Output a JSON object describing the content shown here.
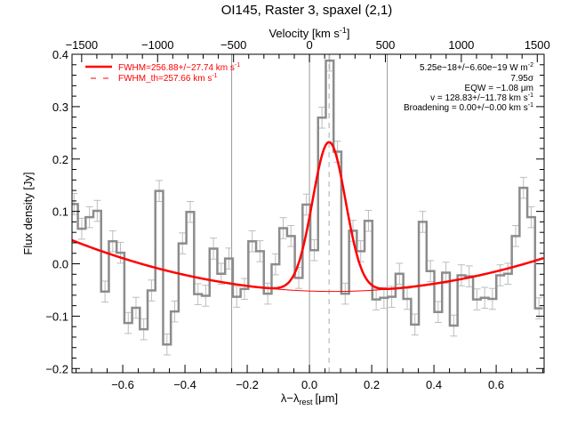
{
  "chart_data": {
    "type": "line",
    "title": "OI145, Raster 3, spaxel (2,1)",
    "xlabel": "λ−λ",
    "xlabel_sub": "rest",
    "xlabel_unit": "[μm]",
    "ylabel": "Flux density [Jy]",
    "top_xlabel": "Velocity [km s",
    "top_xlabel_sup": "-1",
    "top_xlabel_end": "]",
    "xlim": [
      -0.763,
      0.754
    ],
    "ylim": [
      -0.208,
      0.4
    ],
    "grid": false,
    "x_ticks": [
      -0.6,
      -0.4,
      -0.2,
      0.0,
      0.2,
      0.4,
      0.6
    ],
    "x_tick_labels": [
      "−0.6",
      "−0.4",
      "−0.2",
      "0.0",
      "0.2",
      "0.4",
      "0.6"
    ],
    "y_ticks": [
      -0.2,
      -0.1,
      0.0,
      0.1,
      0.2,
      0.3,
      0.4
    ],
    "y_tick_labels": [
      "−0.2",
      "−0.1",
      "0.0",
      "0.1",
      "0.2",
      "0.3",
      "0.4"
    ],
    "top_ticks_kms": [
      -1500,
      -1000,
      -500,
      0,
      500,
      1000,
      1500
    ],
    "top_tick_labels": [
      "−1500",
      "−1000",
      "−500",
      "0",
      "500",
      "1000",
      "1500"
    ],
    "kms_to_um": 0.000488,
    "spectrum": {
      "name": "data",
      "color": "#8c8c8c",
      "errorbar_color": "#bdbdbd",
      "bin_start": -0.794,
      "bin_width": 0.0249,
      "error": 0.02,
      "values": [
        0.129,
        0.114,
        0.067,
        0.089,
        0.101,
        -0.053,
        0.043,
        0.021,
        -0.113,
        -0.084,
        -0.125,
        -0.051,
        0.139,
        -0.154,
        -0.091,
        0.039,
        0.099,
        -0.058,
        -0.061,
        0.029,
        -0.019,
        0.01,
        -0.063,
        -0.048,
        0.043,
        0.024,
        -0.057,
        -0.001,
        0.068,
        0.053,
        -0.027,
        0.113,
        0.026,
        0.279,
        0.388,
        0.214,
        -0.057,
        0.063,
        0.024,
        0.082,
        -0.068,
        -0.065,
        -0.063,
        -0.019,
        -0.067,
        -0.116,
        0.08,
        -0.014,
        -0.092,
        -0.017,
        -0.118,
        -0.022,
        -0.024,
        -0.068,
        -0.065,
        -0.067,
        -0.022,
        -0.019,
        0.053,
        0.145,
        0.089,
        -0.085
      ]
    },
    "model": {
      "color": "#ff0000",
      "baseline_coeffs": [
        -0.052,
        -0.021,
        0.139
      ],
      "gauss_center": 0.063,
      "gauss_amplitude": 0.285,
      "gauss_fwhm_um": 0.125
    },
    "vlines_solid": [
      -0.25,
      0.0,
      0.25
    ],
    "vline_dashed": 0.063,
    "legend": [
      {
        "label": "FWHM=256.88+/−27.74 km s",
        "sup": "-1",
        "style": "solid"
      },
      {
        "label": "FWHM_th=257.66 km s",
        "sup": "-1",
        "style": "dashed"
      }
    ],
    "annotations": [
      {
        "text": "5.25e−18+/−6.60e−19 W m",
        "sup": "-2"
      },
      {
        "text": "7.95σ",
        "sup": ""
      },
      {
        "text": "EQW = −1.08 μm",
        "sup": ""
      },
      {
        "text": "v = 128.83+/−11.78 km s",
        "sup": "-1"
      },
      {
        "text": "Broadening = 0.00+/−0.00 km s",
        "sup": "-1"
      }
    ]
  }
}
